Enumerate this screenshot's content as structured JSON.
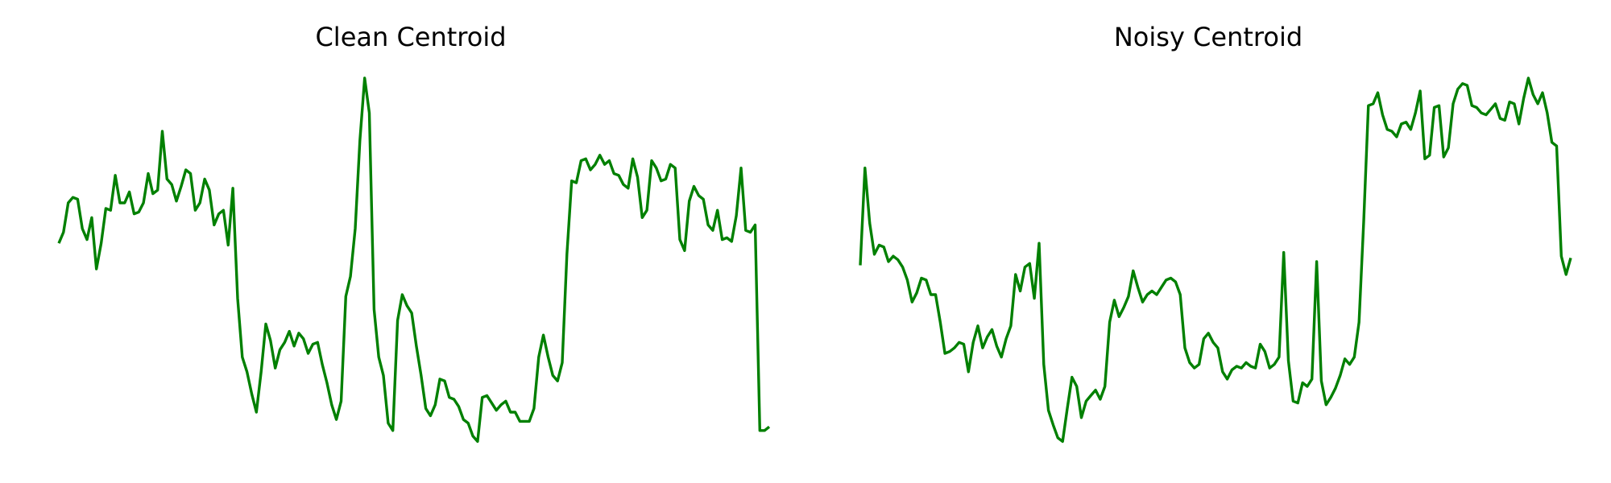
{
  "line_color": "#008000",
  "chart_data": [
    {
      "type": "line",
      "title": "Clean Centroid",
      "xlabel": "",
      "ylabel": "",
      "axes_visible": false,
      "grid": false,
      "legend": "none",
      "ylim": [
        0,
        1
      ],
      "series": [
        {
          "values": [
            0.55,
            0.58,
            0.66,
            0.675,
            0.67,
            0.59,
            0.56,
            0.62,
            0.48,
            0.55,
            0.645,
            0.64,
            0.735,
            0.66,
            0.66,
            0.69,
            0.63,
            0.635,
            0.66,
            0.74,
            0.685,
            0.695,
            0.855,
            0.725,
            0.71,
            0.665,
            0.705,
            0.75,
            0.74,
            0.64,
            0.66,
            0.725,
            0.695,
            0.6,
            0.63,
            0.64,
            0.545,
            0.7,
            0.4,
            0.24,
            0.2,
            0.14,
            0.09,
            0.2,
            0.33,
            0.285,
            0.21,
            0.26,
            0.28,
            0.31,
            0.27,
            0.305,
            0.29,
            0.25,
            0.275,
            0.28,
            0.22,
            0.17,
            0.11,
            0.07,
            0.12,
            0.405,
            0.46,
            0.59,
            0.83,
            1.0,
            0.905,
            0.37,
            0.24,
            0.19,
            0.06,
            0.04,
            0.34,
            0.41,
            0.38,
            0.36,
            0.27,
            0.19,
            0.1,
            0.08,
            0.11,
            0.18,
            0.175,
            0.13,
            0.125,
            0.105,
            0.07,
            0.06,
            0.025,
            0.01,
            0.13,
            0.135,
            0.115,
            0.095,
            0.11,
            0.12,
            0.09,
            0.09,
            0.065,
            0.065,
            0.065,
            0.1,
            0.24,
            0.3,
            0.24,
            0.19,
            0.175,
            0.225,
            0.52,
            0.72,
            0.715,
            0.775,
            0.78,
            0.75,
            0.765,
            0.79,
            0.765,
            0.775,
            0.74,
            0.735,
            0.71,
            0.7,
            0.78,
            0.73,
            0.62,
            0.64,
            0.775,
            0.755,
            0.72,
            0.725,
            0.765,
            0.755,
            0.56,
            0.53,
            0.665,
            0.705,
            0.68,
            0.67,
            0.6,
            0.585,
            0.64,
            0.56,
            0.565,
            0.555,
            0.625,
            0.755,
            0.585,
            0.58,
            0.6,
            0.04,
            0.04,
            0.05
          ]
        }
      ]
    },
    {
      "type": "line",
      "title": "Noisy Centroid",
      "xlabel": "",
      "ylabel": "",
      "axes_visible": false,
      "grid": false,
      "legend": "none",
      "ylim": [
        0,
        1
      ],
      "series": [
        {
          "values": [
            0.49,
            0.755,
            0.605,
            0.52,
            0.545,
            0.54,
            0.5,
            0.515,
            0.505,
            0.485,
            0.45,
            0.39,
            0.415,
            0.455,
            0.45,
            0.41,
            0.41,
            0.335,
            0.25,
            0.255,
            0.265,
            0.28,
            0.275,
            0.2,
            0.28,
            0.325,
            0.265,
            0.295,
            0.315,
            0.27,
            0.24,
            0.29,
            0.325,
            0.465,
            0.42,
            0.485,
            0.495,
            0.4,
            0.55,
            0.22,
            0.095,
            0.055,
            0.02,
            0.01,
            0.1,
            0.185,
            0.16,
            0.075,
            0.12,
            0.135,
            0.15,
            0.125,
            0.16,
            0.335,
            0.395,
            0.35,
            0.375,
            0.405,
            0.475,
            0.43,
            0.39,
            0.41,
            0.42,
            0.41,
            0.43,
            0.45,
            0.455,
            0.445,
            0.41,
            0.265,
            0.225,
            0.21,
            0.22,
            0.29,
            0.305,
            0.28,
            0.265,
            0.2,
            0.18,
            0.205,
            0.215,
            0.21,
            0.225,
            0.215,
            0.21,
            0.275,
            0.255,
            0.21,
            0.22,
            0.24,
            0.525,
            0.23,
            0.12,
            0.115,
            0.17,
            0.16,
            0.18,
            0.5,
            0.175,
            0.11,
            0.13,
            0.155,
            0.19,
            0.235,
            0.22,
            0.24,
            0.335,
            0.61,
            0.925,
            0.93,
            0.96,
            0.9,
            0.86,
            0.855,
            0.84,
            0.875,
            0.88,
            0.86,
            0.905,
            0.965,
            0.78,
            0.79,
            0.92,
            0.925,
            0.785,
            0.81,
            0.93,
            0.97,
            0.985,
            0.98,
            0.925,
            0.92,
            0.905,
            0.9,
            0.915,
            0.93,
            0.89,
            0.885,
            0.935,
            0.93,
            0.875,
            0.945,
            1.0,
            0.955,
            0.93,
            0.96,
            0.905,
            0.825,
            0.815,
            0.515,
            0.465,
            0.51
          ]
        }
      ]
    }
  ]
}
